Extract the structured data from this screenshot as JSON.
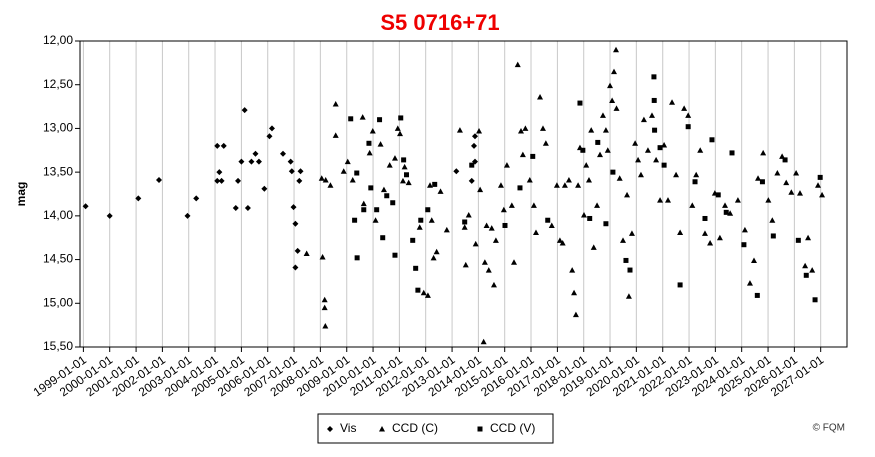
{
  "chart_data": {
    "type": "scatter",
    "title": "S5 0716+71",
    "title_color": "#ee0000",
    "y_label": "mag",
    "copyright": "© FQM",
    "xlim": [
      "1998-11-15",
      "2028-01-01"
    ],
    "xticks": [
      "1999-01-01",
      "2000-01-01",
      "2001-01-01",
      "2002-01-01",
      "2003-01-01",
      "2004-01-01",
      "2005-01-01",
      "2006-01-01",
      "2007-01-01",
      "2008-01-01",
      "2009-01-01",
      "2010-01-01",
      "2011-01-01",
      "2012-01-01",
      "2013-01-01",
      "2014-01-01",
      "2015-01-01",
      "2016-01-01",
      "2017-01-01",
      "2018-01-01",
      "2019-01-01",
      "2020-01-01",
      "2021-01-01",
      "2022-01-01",
      "2023-01-01",
      "2024-01-01",
      "2025-01-01",
      "2026-01-01",
      "2027-01-01"
    ],
    "ylim": [
      15.5,
      12
    ],
    "yticks": [
      {
        "value": 12,
        "label": "12,00"
      },
      {
        "value": 12.5,
        "label": "12,50"
      },
      {
        "value": 13,
        "label": "13,00"
      },
      {
        "value": 13.5,
        "label": "13,50"
      },
      {
        "value": 14,
        "label": "14,00"
      },
      {
        "value": 14.5,
        "label": "14,50"
      },
      {
        "value": 15,
        "label": "15,00"
      },
      {
        "value": 15.5,
        "label": "15,50"
      }
    ],
    "grid": "x",
    "legend": "bottom",
    "series": [
      {
        "name": "Vis",
        "marker": "diamond",
        "color": "#000000",
        "x": [
          "1999-02-01",
          "2000-01-01",
          "2001-02-01",
          "2001-11-15",
          "2002-12-15",
          "2003-04-15",
          "2004-02-01",
          "2004-05-01",
          "2004-03-01",
          "2004-02-01",
          "2004-04-01",
          "2004-10-15",
          "2004-11-15",
          "2005-02-15",
          "2005-01-01",
          "2005-04-01",
          "2005-05-20",
          "2005-07-15",
          "2005-09-01",
          "2005-11-15",
          "2006-01-25",
          "2006-03-01",
          "2006-08-01",
          "2006-11-15",
          "2006-12-01",
          "2006-12-25",
          "2007-01-20",
          "2007-01-20",
          "2007-02-20",
          "2007-03-15",
          "2007-04-01",
          "2013-03-01",
          "2013-11-01",
          "2013-11-15",
          "2013-11-15",
          "2013-10-01"
        ],
        "values": [
          13.89,
          14.0,
          13.8,
          13.59,
          14.0,
          13.8,
          13.2,
          13.2,
          13.5,
          13.6,
          13.6,
          13.91,
          13.6,
          12.79,
          13.38,
          13.91,
          13.38,
          13.29,
          13.38,
          13.69,
          13.09,
          13.0,
          13.29,
          13.38,
          13.49,
          13.9,
          14.09,
          14.59,
          14.4,
          13.6,
          13.49,
          13.49,
          13.2,
          13.09,
          13.38,
          13.6
        ]
      },
      {
        "name": "CCD (C)",
        "marker": "triangle",
        "color": "#000000",
        "x": [
          "2007-06-25",
          "2008-01-20",
          "2008-02-01",
          "2008-03-01",
          "2008-03-01",
          "2008-03-10",
          "2008-03-15",
          "2008-05-20",
          "2008-08-01",
          "2008-08-01",
          "2008-11-20",
          "2009-01-15",
          "2009-03-25",
          "2009-08-10",
          "2009-08-25",
          "2009-11-15",
          "2009-12-28",
          "2010-02-05",
          "2010-04-15",
          "2010-06-01",
          "2010-08-20",
          "2010-11-01",
          "2010-12-10",
          "2011-01-10",
          "2011-02-20",
          "2011-03-15",
          "2011-05-10",
          "2011-10-10",
          "2011-12-05",
          "2012-02-01",
          "2012-03-01",
          "2012-03-25",
          "2012-04-20",
          "2012-06-01",
          "2012-07-25",
          "2012-10-20",
          "2013-04-20",
          "2013-06-25",
          "2013-07-10",
          "2013-08-20",
          "2013-11-25",
          "2014-01-10",
          "2014-01-25",
          "2014-03-15",
          "2014-04-01",
          "2014-04-25",
          "2014-05-25",
          "2014-07-05",
          "2014-08-05",
          "2014-09-01",
          "2014-11-10",
          "2014-12-20",
          "2015-02-01",
          "2015-04-10",
          "2015-05-10",
          "2015-07-01",
          "2015-08-15",
          "2015-09-10",
          "2015-10-15",
          "2015-12-15",
          "2016-02-10",
          "2016-03-10",
          "2016-05-05",
          "2016-06-15",
          "2016-07-25",
          "2016-10-15",
          "2016-12-25",
          "2017-02-05",
          "2017-03-15",
          "2017-04-15",
          "2017-06-10",
          "2017-07-25",
          "2017-08-20",
          "2017-09-15",
          "2017-10-15",
          "2017-11-10",
          "2018-01-05",
          "2018-02-05",
          "2018-03-15",
          "2018-04-15",
          "2018-05-20",
          "2018-07-05",
          "2018-08-15",
          "2018-09-25",
          "2018-11-05",
          "2018-12-01",
          "2019-01-01",
          "2019-01-30",
          "2019-02-25",
          "2019-03-25",
          "2019-04-01",
          "2019-05-15",
          "2019-06-30",
          "2019-08-25",
          "2019-09-20",
          "2019-11-01",
          "2019-12-15",
          "2020-01-25",
          "2020-03-05",
          "2020-04-15",
          "2020-06-10",
          "2020-08-05",
          "2020-10-01",
          "2020-11-25",
          "2021-01-20",
          "2021-03-15",
          "2021-05-10",
          "2021-07-05",
          "2021-08-30",
          "2021-10-25",
          "2021-12-20",
          "2022-02-15",
          "2022-04-10",
          "2022-06-05",
          "2022-08-10",
          "2022-10-20",
          "2022-12-25",
          "2023-03-05",
          "2023-05-15",
          "2023-07-25",
          "2023-11-10",
          "2024-02-15",
          "2024-04-25",
          "2024-06-20",
          "2024-08-15",
          "2024-10-25",
          "2025-01-05",
          "2025-03-01",
          "2025-05-10",
          "2025-07-15",
          "2025-09-10",
          "2025-11-20",
          "2026-01-25",
          "2026-03-20",
          "2026-05-30",
          "2026-07-10",
          "2026-09-05",
          "2026-11-25",
          "2027-01-20"
        ],
        "values": [
          14.43,
          13.57,
          14.47,
          14.96,
          15.05,
          15.26,
          13.59,
          13.65,
          12.72,
          13.08,
          13.49,
          13.38,
          13.59,
          12.87,
          13.86,
          13.28,
          13.03,
          14.05,
          13.18,
          13.7,
          13.42,
          13.34,
          13.0,
          13.06,
          13.6,
          13.44,
          13.62,
          14.13,
          14.88,
          14.91,
          13.65,
          14.05,
          14.48,
          14.41,
          13.72,
          14.16,
          13.02,
          14.13,
          14.56,
          13.99,
          14.32,
          13.03,
          13.7,
          15.44,
          14.53,
          14.11,
          14.62,
          14.14,
          14.79,
          14.28,
          13.65,
          13.93,
          13.42,
          13.88,
          14.53,
          12.27,
          13.03,
          13.3,
          13.0,
          13.59,
          13.88,
          14.19,
          12.64,
          13.0,
          13.17,
          14.11,
          13.65,
          14.28,
          14.31,
          13.65,
          13.59,
          14.62,
          14.88,
          15.13,
          13.65,
          13.22,
          13.99,
          13.42,
          13.59,
          13.02,
          14.36,
          13.88,
          13.3,
          12.85,
          13.02,
          13.25,
          12.51,
          12.68,
          12.35,
          12.1,
          12.77,
          13.57,
          14.28,
          13.76,
          14.92,
          14.2,
          13.17,
          13.36,
          13.53,
          12.9,
          13.25,
          12.85,
          13.36,
          13.82,
          13.19,
          13.82,
          12.7,
          13.53,
          14.19,
          12.77,
          12.85,
          13.88,
          13.53,
          13.25,
          14.2,
          14.31,
          13.74,
          14.25,
          13.88,
          13.97,
          13.82,
          14.16,
          14.77,
          14.51,
          13.57,
          13.28,
          13.82,
          14.05,
          13.51,
          13.32,
          13.62,
          13.73,
          13.51,
          13.74,
          14.57,
          14.25,
          14.62,
          13.65,
          13.76
        ]
      },
      {
        "name": "CCD (V)",
        "marker": "square",
        "color": "#000000",
        "x": [
          "2009-02-25",
          "2009-05-20",
          "2009-04-20",
          "2009-05-25",
          "2009-08-25",
          "2009-11-05",
          "2009-12-01",
          "2010-02-20",
          "2010-04-01",
          "2010-05-15",
          "2010-07-10",
          "2010-10-01",
          "2010-11-01",
          "2011-01-20",
          "2011-03-01",
          "2011-04-10",
          "2011-07-05",
          "2011-08-15",
          "2011-09-15",
          "2011-10-25",
          "2012-01-30",
          "2012-05-05",
          "2013-06-25",
          "2013-10-01",
          "2015-01-05",
          "2015-08-01",
          "2016-01-25",
          "2016-08-20",
          "2017-11-10",
          "2017-12-20",
          "2018-03-25",
          "2018-07-15",
          "2018-11-05",
          "2019-02-10",
          "2019-08-10",
          "2019-10-05",
          "2020-09-01",
          "2020-09-05",
          "2020-09-10",
          "2020-11-25",
          "2021-01-20",
          "2021-08-30",
          "2021-12-20",
          "2022-03-25",
          "2022-08-10",
          "2022-11-15",
          "2023-02-10",
          "2023-06-01",
          "2023-08-20",
          "2024-02-01",
          "2024-08-05",
          "2024-10-15",
          "2025-03-15",
          "2025-08-25",
          "2026-02-25",
          "2026-06-15",
          "2026-10-15",
          "2026-12-25"
        ],
        "values": [
          12.89,
          13.51,
          14.05,
          14.48,
          13.93,
          13.17,
          13.68,
          13.93,
          12.9,
          14.25,
          13.77,
          13.85,
          14.45,
          12.88,
          13.36,
          13.53,
          14.28,
          14.6,
          14.85,
          14.05,
          13.93,
          13.64,
          14.07,
          13.42,
          14.11,
          13.68,
          13.32,
          14.05,
          12.71,
          13.25,
          14.03,
          13.16,
          14.09,
          13.5,
          14.51,
          14.62,
          12.41,
          12.68,
          13.02,
          13.22,
          13.42,
          14.79,
          12.98,
          13.61,
          14.03,
          13.13,
          13.76,
          13.96,
          13.28,
          14.33,
          14.91,
          13.61,
          14.23,
          13.36,
          14.28,
          14.68,
          14.96,
          13.56
        ]
      }
    ]
  }
}
